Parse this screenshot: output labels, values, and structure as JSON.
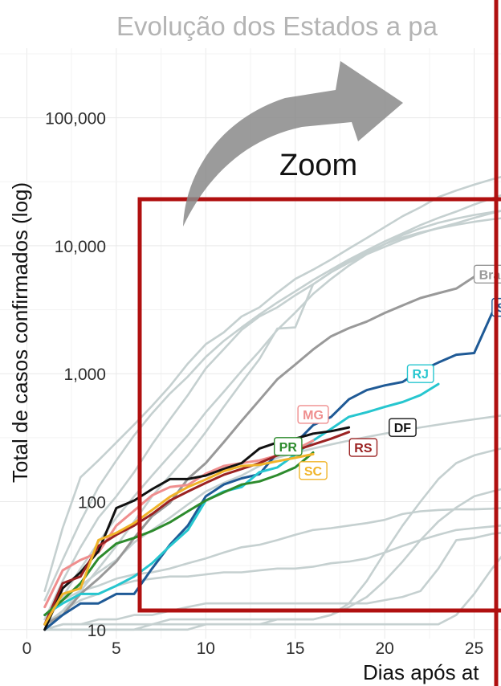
{
  "chart_data": {
    "type": "line",
    "title": "Evolução dos Estados a pa",
    "xlabel": "Dias após at",
    "ylabel": "Total de casos confirmados (log)",
    "y_scale": "log",
    "xlim": [
      -1.5,
      26.5
    ],
    "ylim": [
      8.5,
      350000
    ],
    "x_ticks": [
      0,
      5,
      10,
      15,
      20,
      25
    ],
    "x_tick_labels": [
      "0",
      "5",
      "10",
      "15",
      "20",
      "25"
    ],
    "y_ticks": [
      10,
      100,
      1000,
      10000,
      100000
    ],
    "y_tick_labels": [
      "10",
      "100",
      "1,000",
      "10,000",
      "100,000"
    ],
    "grid": true,
    "annotation": "Zoom",
    "colors": {
      "zoom_box": "#b01010",
      "arrow": "#8a8a8a",
      "background_series": "#c5d0d0",
      "Brazil": "#999999",
      "SP": "#1f5a96",
      "RJ": "#26c6cf",
      "MG": "#ef8e8e",
      "DF": "#111111",
      "RS": "#9b2222",
      "PR": "#2d8b2d",
      "SC": "#f0b429"
    },
    "highlighted_series": [
      {
        "name": "Brazil",
        "label": "Bra",
        "x": [
          1,
          2,
          3,
          4,
          5,
          6,
          7,
          8,
          9,
          10,
          11,
          12,
          13,
          14,
          15,
          16,
          17,
          18,
          19,
          20,
          21,
          22,
          23,
          24,
          25,
          26
        ],
        "y": [
          11,
          13,
          19,
          25,
          34,
          52,
          77,
          98,
          151,
          200,
          291,
          428,
          621,
          904,
          1178,
          1546,
          1960,
          2271,
          2554,
          2985,
          3417,
          3904,
          4256,
          4630,
          5717,
          6836
        ]
      },
      {
        "name": "SP",
        "label": "S",
        "x": [
          1,
          2,
          3,
          4,
          5,
          6,
          7,
          8,
          9,
          10,
          11,
          12,
          13,
          14,
          15,
          16,
          17,
          18,
          19,
          20,
          21,
          22,
          23,
          24,
          25,
          26
        ],
        "y": [
          10,
          13,
          16,
          16,
          19,
          19,
          30,
          46,
          65,
          110,
          136,
          152,
          164,
          240,
          286,
          396,
          459,
          631,
          745,
          810,
          862,
          1052,
          1223,
          1406,
          1451,
          2981
        ]
      },
      {
        "name": "RJ",
        "label": "RJ",
        "x": [
          1,
          2,
          3,
          4,
          5,
          6,
          7,
          8,
          9,
          10,
          11,
          12,
          13,
          14,
          15,
          16,
          17,
          18,
          19,
          20,
          21,
          22,
          23
        ],
        "y": [
          13,
          16,
          19,
          19,
          22,
          26,
          33,
          45,
          60,
          102,
          120,
          130,
          170,
          185,
          233,
          300,
          370,
          460,
          500,
          550,
          600,
          680,
          830
        ]
      },
      {
        "name": "MG",
        "label": "MG",
        "x": [
          1,
          2,
          3,
          4,
          5,
          6,
          7,
          8,
          9,
          10,
          11,
          12,
          13,
          14,
          15,
          16
        ],
        "y": [
          15,
          29,
          35,
          40,
          65,
          85,
          112,
          130,
          135,
          165,
          190,
          200,
          210,
          230,
          255,
          300
        ]
      },
      {
        "name": "DF",
        "label": "DF",
        "x": [
          1,
          2,
          3,
          4,
          5,
          6,
          7,
          8,
          9,
          10,
          11,
          12,
          13,
          14,
          15,
          16,
          17,
          18
        ],
        "y": [
          10,
          21,
          28,
          41,
          89,
          102,
          125,
          150,
          150,
          160,
          180,
          200,
          260,
          290,
          310,
          340,
          355,
          380
        ]
      },
      {
        "name": "RS",
        "label": "RS",
        "x": [
          1,
          2,
          3,
          4,
          5,
          6,
          7,
          8,
          9,
          10,
          11,
          12,
          13,
          14,
          15,
          16,
          17,
          18
        ],
        "y": [
          11,
          23,
          26,
          45,
          55,
          65,
          80,
          102,
          120,
          140,
          162,
          180,
          200,
          230,
          250,
          280,
          310,
          350
        ]
      },
      {
        "name": "PR",
        "label": "PR",
        "x": [
          1,
          2,
          3,
          4,
          5,
          6,
          7,
          8,
          9,
          10,
          11,
          12,
          13,
          14,
          15,
          16
        ],
        "y": [
          13,
          17,
          23,
          36,
          47,
          52,
          59,
          69,
          84,
          102,
          118,
          136,
          144,
          161,
          185,
          242
        ]
      },
      {
        "name": "SC",
        "label": "SC",
        "x": [
          1,
          2,
          3,
          4,
          5,
          6,
          7,
          8,
          9,
          10,
          11,
          12,
          13,
          14,
          15,
          16
        ],
        "y": [
          11,
          19,
          21,
          50,
          57,
          68,
          86,
          109,
          130,
          149,
          173,
          190,
          194,
          207,
          220,
          235
        ]
      }
    ],
    "background_series": [
      {
        "x": [
          1,
          2,
          3,
          4,
          5,
          6,
          7,
          8,
          9,
          10,
          11,
          12,
          13,
          14,
          15,
          16,
          17,
          18,
          19,
          20,
          21,
          22,
          23,
          24,
          25,
          26,
          27
        ],
        "y": [
          20,
          62,
          155,
          210,
          290,
          400,
          560,
          800,
          1200,
          1700,
          2100,
          2800,
          3300,
          4300,
          5500,
          6500,
          7800,
          9500,
          11500,
          14000,
          17000,
          20000,
          24000,
          27000,
          30000,
          33000,
          36000
        ]
      },
      {
        "x": [
          1,
          2,
          3,
          4,
          5,
          6,
          7,
          8,
          9,
          10,
          11,
          12,
          13,
          14,
          15,
          16,
          17,
          18,
          19,
          20,
          21,
          22,
          23,
          24,
          25,
          26,
          27
        ],
        "y": [
          17,
          35,
          70,
          130,
          210,
          330,
          490,
          700,
          950,
          1350,
          1800,
          2300,
          2900,
          3600,
          4400,
          5400,
          6500,
          7800,
          9200,
          10800,
          12500,
          14500,
          16500,
          18500,
          21000,
          23500,
          26000
        ]
      },
      {
        "x": [
          1,
          2,
          3,
          4,
          5,
          6,
          7,
          8,
          9,
          10,
          11,
          12,
          13,
          14,
          15,
          16,
          17,
          18,
          19,
          20,
          21,
          22,
          23,
          24,
          25,
          26,
          27
        ],
        "y": [
          12,
          24,
          44,
          75,
          110,
          170,
          280,
          440,
          680,
          1100,
          1550,
          2200,
          2800,
          3300,
          4100,
          5000,
          6200,
          7400,
          8600,
          9800,
          11200,
          12500,
          13800,
          15000,
          16500,
          18000,
          19500
        ]
      },
      {
        "x": [
          1,
          2,
          3,
          4,
          5,
          6,
          7,
          8,
          9,
          10,
          11,
          12,
          13,
          14,
          15,
          16,
          17,
          18,
          19,
          20,
          21,
          22,
          23,
          24,
          25,
          26,
          27
        ],
        "y": [
          11,
          18,
          30,
          48,
          75,
          110,
          160,
          230,
          330,
          500,
          720,
          1050,
          1500,
          2200,
          3000,
          4200,
          5500,
          7000,
          8600,
          10300,
          12100,
          13700,
          15100,
          16300,
          17400,
          18300,
          19100
        ]
      },
      {
        "x": [
          1,
          2,
          3,
          4,
          5,
          6,
          7,
          8,
          9,
          10,
          11,
          12,
          13,
          14,
          15,
          16,
          17,
          18,
          19,
          20,
          21,
          22,
          23,
          24,
          25,
          26,
          27
        ],
        "y": [
          10,
          14,
          20,
          30,
          45,
          70,
          110,
          160,
          230,
          350,
          550,
          850,
          1300,
          2250,
          2300,
          5000,
          6200,
          7600,
          8900,
          10300,
          11600,
          12700,
          13700,
          14600,
          15400,
          16100,
          16700
        ]
      },
      {
        "x": [
          1,
          2,
          3,
          4,
          5,
          6,
          7,
          8,
          9,
          10,
          11,
          12,
          13,
          14,
          15,
          16,
          17,
          18,
          19,
          20,
          21,
          22,
          23,
          24,
          25,
          26,
          27
        ],
        "y": [
          12,
          18,
          22,
          28,
          35,
          48,
          60,
          75,
          95,
          120,
          140,
          160,
          190,
          220,
          240,
          260,
          280,
          300,
          320,
          340,
          360,
          380,
          400,
          420,
          440,
          460,
          480
        ]
      },
      {
        "x": [
          1,
          2,
          3,
          4,
          5,
          6,
          7,
          8,
          9,
          10,
          11,
          12,
          13,
          14,
          15,
          16,
          17,
          18,
          19,
          20,
          21,
          22,
          23,
          24,
          25,
          26,
          27
        ],
        "y": [
          12,
          17,
          20,
          22,
          25,
          27,
          28,
          30,
          33,
          36,
          40,
          44,
          46,
          50,
          55,
          60,
          62,
          65,
          68,
          72,
          80,
          84,
          86,
          87,
          87,
          88,
          90
        ]
      },
      {
        "x": [
          1,
          2,
          3,
          4,
          5,
          6,
          7,
          8,
          9,
          10,
          11,
          12,
          13,
          14,
          15,
          16,
          17,
          18,
          19,
          20,
          21,
          22,
          23,
          24,
          25,
          26,
          27
        ],
        "y": [
          11,
          14,
          17,
          19,
          22,
          24,
          25,
          26,
          26,
          27,
          28,
          28,
          29,
          30,
          30,
          31,
          33,
          34,
          36,
          40,
          45,
          50,
          55,
          60,
          62,
          64,
          66
        ]
      },
      {
        "x": [
          1,
          2,
          3,
          4,
          5,
          6,
          7,
          8,
          9,
          10,
          11,
          12,
          13,
          14,
          15,
          16,
          17,
          18,
          19,
          20,
          21,
          22,
          23,
          24,
          25,
          26,
          27
        ],
        "y": [
          10,
          11,
          11,
          12,
          12,
          13,
          13,
          14,
          15,
          16,
          16,
          16,
          16,
          16,
          16,
          16,
          16,
          16,
          16,
          17,
          18,
          20,
          30,
          50,
          52,
          56,
          58
        ]
      },
      {
        "x": [
          1,
          2,
          3,
          4,
          5,
          6,
          7,
          8,
          9,
          10,
          11,
          12,
          13,
          14,
          15,
          16,
          17,
          18,
          19,
          20,
          21,
          22,
          23,
          24,
          25,
          26,
          27
        ],
        "y": [
          10,
          11,
          11,
          11,
          11,
          11,
          11,
          12,
          12,
          12,
          12,
          12,
          12,
          12,
          12,
          12,
          13,
          16,
          24,
          40,
          65,
          100,
          150,
          200,
          230,
          250,
          270
        ]
      },
      {
        "x": [
          1,
          2,
          3,
          4,
          5,
          6,
          7,
          8,
          9,
          10,
          11,
          12,
          13,
          14,
          15,
          16,
          17,
          18,
          19,
          20,
          21,
          22,
          23,
          24,
          25,
          26,
          27
        ],
        "y": [
          10,
          10,
          10,
          10,
          10,
          10,
          11,
          11,
          11,
          11,
          11,
          11,
          11,
          12,
          12,
          12,
          13,
          15,
          18,
          24,
          34,
          50,
          70,
          90,
          110,
          120,
          130
        ]
      },
      {
        "x": [
          1,
          2,
          3,
          4,
          5,
          6,
          7,
          8,
          9,
          10,
          11,
          12,
          13,
          14,
          15,
          16,
          17,
          18,
          19,
          20,
          21,
          22,
          23,
          24,
          25,
          26,
          27
        ],
        "y": [
          10,
          10,
          10,
          10,
          10,
          10,
          10,
          10,
          10,
          11,
          11,
          11,
          11,
          11,
          11,
          11,
          11,
          11,
          11,
          11,
          11,
          11,
          11,
          13,
          19,
          30,
          45
        ]
      }
    ]
  }
}
